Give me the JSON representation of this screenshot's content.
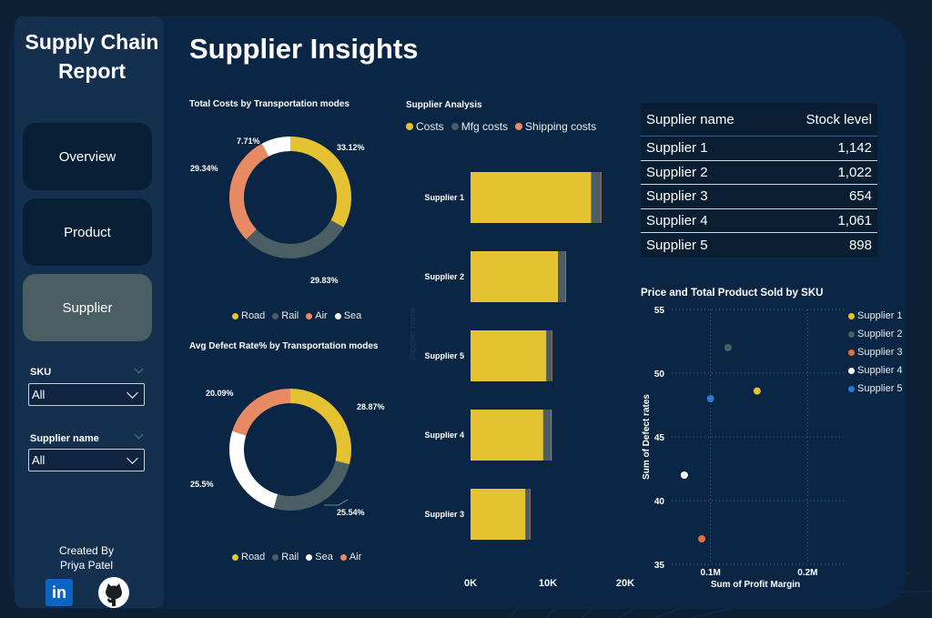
{
  "app": {
    "title_line1": "Supply Chain",
    "title_line2": "Report"
  },
  "nav": [
    {
      "label": "Overview",
      "active": false
    },
    {
      "label": "Product",
      "active": false
    },
    {
      "label": "Supplier",
      "active": true
    }
  ],
  "filters": {
    "sku": {
      "label": "SKU",
      "value": "All"
    },
    "supplier": {
      "label": "Supplier name",
      "value": "All"
    }
  },
  "credit": {
    "line1": "Created By",
    "line2": "Priya Patel"
  },
  "social": {
    "linkedin_text": "in"
  },
  "page": {
    "title": "Supplier Insights"
  },
  "donut_costs": {
    "title": "Total Costs by Transportation modes",
    "legend": [
      "Road",
      "Rail",
      "Air",
      "Sea"
    ],
    "labels": [
      "33.12%",
      "29.83%",
      "29.34%",
      "7.71%"
    ]
  },
  "donut_defect": {
    "title": "Avg Defect Rate% by Transportation modes",
    "legend": [
      "Road",
      "Rail",
      "Sea",
      "Air"
    ],
    "labels": [
      "28.87%",
      "25.54%",
      "25.5%",
      "20.09%"
    ]
  },
  "supplier_analysis": {
    "title": "Supplier Analysis",
    "legend": [
      "Costs",
      "Mfg costs",
      "Shipping costs"
    ],
    "ghost_axis_label": "Supplier name",
    "x_ticks": [
      "0K",
      "10K",
      "20K"
    ]
  },
  "stock_table": {
    "headers": [
      "Supplier name",
      "Stock level"
    ],
    "rows": [
      {
        "name": "Supplier 1",
        "stock": "1,142"
      },
      {
        "name": "Supplier 2",
        "stock": "1,022"
      },
      {
        "name": "Supplier 3",
        "stock": "654"
      },
      {
        "name": "Supplier 4",
        "stock": "1,061"
      },
      {
        "name": "Supplier 5",
        "stock": "898"
      }
    ]
  },
  "scatter": {
    "title": "Price and Total Product Sold by SKU",
    "xlabel": "Sum of Profit Margin",
    "ylabel": "Sum of Defect rates",
    "x_ticks": [
      "0.1M",
      "0.2M"
    ],
    "y_ticks": [
      "55",
      "50",
      "45",
      "40",
      "35"
    ],
    "legend": [
      "Supplier 1",
      "Supplier 2",
      "Supplier 3",
      "Supplier 4",
      "Supplier 5"
    ]
  },
  "colors": {
    "road": "#e5c232",
    "rail": "#4a5e63",
    "air": "#e88a63",
    "sea": "#ffffff",
    "costs": "#e5c232",
    "mfg": "#4a5e63",
    "shipping": "#e88a63",
    "s1": "#e5c232",
    "s2": "#4a5e63",
    "s3": "#e07040",
    "s4": "#ffffff",
    "s5": "#2a78d0"
  },
  "chart_data": [
    {
      "type": "pie",
      "title": "Total Costs by Transportation modes",
      "categories": [
        "Road",
        "Rail",
        "Air",
        "Sea"
      ],
      "values": [
        33.12,
        29.83,
        29.34,
        7.71
      ],
      "unit": "%"
    },
    {
      "type": "pie",
      "title": "Avg Defect Rate% by Transportation modes",
      "categories": [
        "Road",
        "Rail",
        "Sea",
        "Air"
      ],
      "values": [
        28.87,
        25.54,
        25.5,
        20.09
      ],
      "unit": "%"
    },
    {
      "type": "bar",
      "orientation": "horizontal",
      "stacked": true,
      "title": "Supplier Analysis",
      "categories": [
        "Supplier 1",
        "Supplier 2",
        "Supplier 5",
        "Supplier 4",
        "Supplier 3"
      ],
      "series": [
        {
          "name": "Costs",
          "values": [
            15600,
            11300,
            9800,
            9400,
            7100
          ]
        },
        {
          "name": "Mfg costs",
          "values": [
            1200,
            950,
            700,
            1000,
            600
          ]
        },
        {
          "name": "Shipping costs",
          "values": [
            100,
            80,
            70,
            90,
            60
          ]
        }
      ],
      "xlim": [
        0,
        20000
      ],
      "x_ticks": [
        "0K",
        "10K",
        "20K"
      ]
    },
    {
      "type": "scatter",
      "title": "Price and Total Product Sold by SKU",
      "xlabel": "Sum of Profit Margin",
      "ylabel": "Sum of Defect rates",
      "xlim": [
        0.06,
        0.24
      ],
      "ylim": [
        35,
        55
      ],
      "series": [
        {
          "name": "Supplier 1",
          "x": 0.148,
          "y": 48.6
        },
        {
          "name": "Supplier 2",
          "x": 0.118,
          "y": 52
        },
        {
          "name": "Supplier 3",
          "x": 0.091,
          "y": 37
        },
        {
          "name": "Supplier 4",
          "x": 0.073,
          "y": 42
        },
        {
          "name": "Supplier 5",
          "x": 0.1,
          "y": 48
        }
      ]
    }
  ]
}
